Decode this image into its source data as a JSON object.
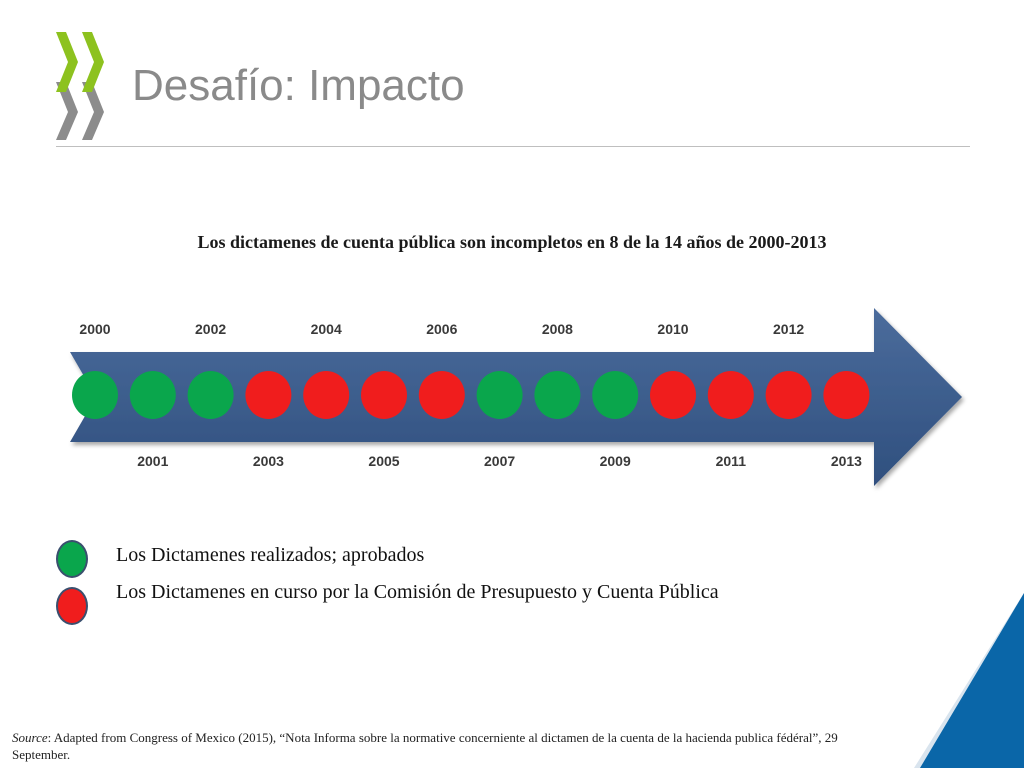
{
  "slide": {
    "title": "Desafío: Impacto",
    "subtitle": "Los dictamenes de cuenta pública son incompletos en 8 de la 14 años de 2000-2013"
  },
  "timeline": {
    "years": [
      {
        "year": "2000",
        "status": "approved"
      },
      {
        "year": "2001",
        "status": "approved"
      },
      {
        "year": "2002",
        "status": "approved"
      },
      {
        "year": "2003",
        "status": "in_progress"
      },
      {
        "year": "2004",
        "status": "in_progress"
      },
      {
        "year": "2005",
        "status": "in_progress"
      },
      {
        "year": "2006",
        "status": "in_progress"
      },
      {
        "year": "2007",
        "status": "approved"
      },
      {
        "year": "2008",
        "status": "approved"
      },
      {
        "year": "2009",
        "status": "approved"
      },
      {
        "year": "2010",
        "status": "in_progress"
      },
      {
        "year": "2011",
        "status": "in_progress"
      },
      {
        "year": "2012",
        "status": "in_progress"
      },
      {
        "year": "2013",
        "status": "in_progress"
      }
    ]
  },
  "legend": {
    "approved_label": "Los Dictamenes realizados; aprobados",
    "in_progress_label": "Los Dictamenes en curso por la Comisión de Presupuesto y Cuenta Pública"
  },
  "source": {
    "prefix": "Source",
    "text": ": Adapted from Congress of Mexico (2015), “Nota Informa sobre la normative concerniente al dictamen de la cuenta de la hacienda publica fédéral”, 29 September."
  },
  "colors": {
    "approved": "#0aa64c",
    "in_progress": "#f01d1d",
    "arrow": "#3f5f8f",
    "logo_green": "#8dc21f",
    "logo_gray": "#8c8c8c",
    "corner_blue": "#0a66a8"
  },
  "icons": {
    "logo": "oecd-chevrons-logo",
    "corner": "corner-triangle-decoration"
  }
}
